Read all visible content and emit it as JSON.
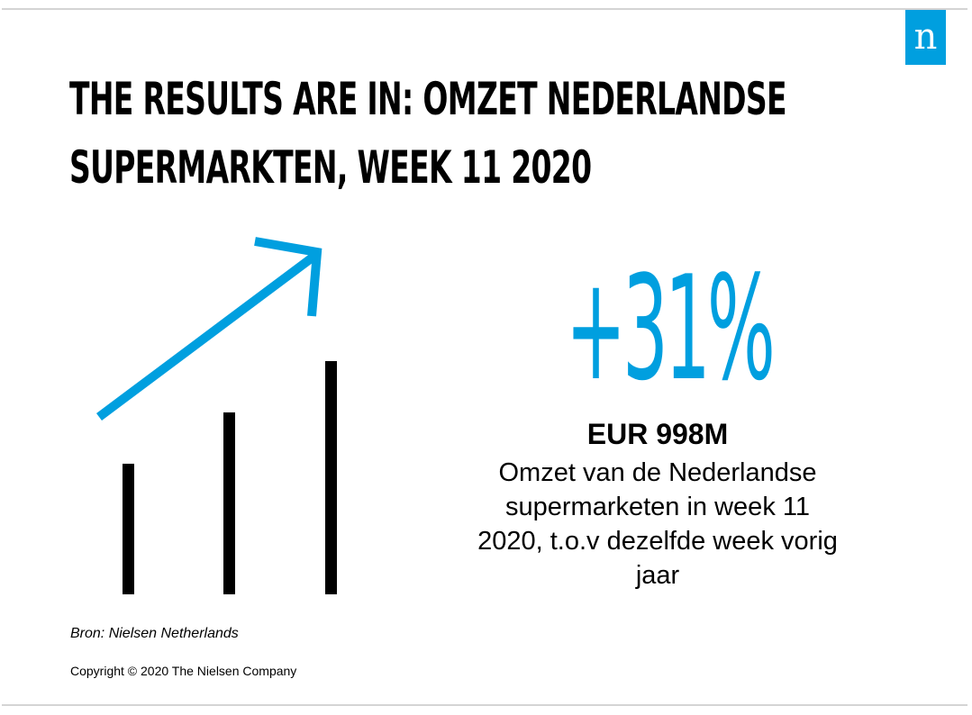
{
  "logo": {
    "letter": "n",
    "color": "#009fdf"
  },
  "title": {
    "line1": "THE RESULTS ARE IN: OMZET NEDERLANDSE",
    "line2": "SUPERMARKTEN, WEEK 11 2020"
  },
  "stat": {
    "value": "+31%",
    "color": "#009fdf"
  },
  "amount": "EUR 998M",
  "description": {
    "line1": "Omzet van de Nederlandse",
    "line2": "supermarketen in week 11",
    "line3": "2020, t.o.v dezelfde week vorig",
    "line4": "jaar"
  },
  "source": "Bron: Nielsen Netherlands",
  "copyright": "Copyright © 2020 The Nielsen Company",
  "graphic": {
    "bar_levels": [
      0.56,
      0.78,
      1.0
    ],
    "arrow_color": "#009fdf",
    "bar_color": "#000000"
  }
}
